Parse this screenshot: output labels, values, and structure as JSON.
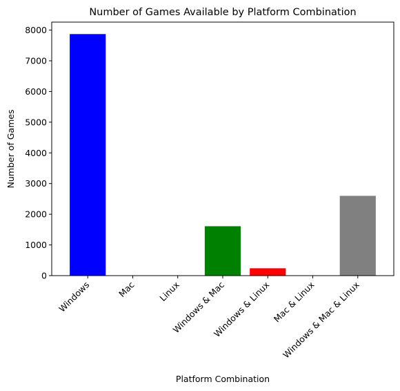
{
  "chart_data": {
    "type": "bar",
    "title": "Number of Games Available by Platform Combination",
    "xlabel": "Platform Combination",
    "ylabel": "Number of Games",
    "categories": [
      "Windows",
      "Mac",
      "Linux",
      "Windows & Mac",
      "Windows & Linux",
      "Mac & Linux",
      "Windows & Mac & Linux"
    ],
    "values": [
      7870,
      0,
      0,
      1610,
      240,
      0,
      2600
    ],
    "colors": [
      "#0000ff",
      "#0000ff",
      "#0000ff",
      "#008000",
      "#ff0000",
      "#ff0000",
      "#808080"
    ],
    "ylim": [
      0,
      8260
    ],
    "yticks": [
      0,
      1000,
      2000,
      3000,
      4000,
      5000,
      6000,
      7000,
      8000
    ],
    "grid": false,
    "legend": false
  }
}
